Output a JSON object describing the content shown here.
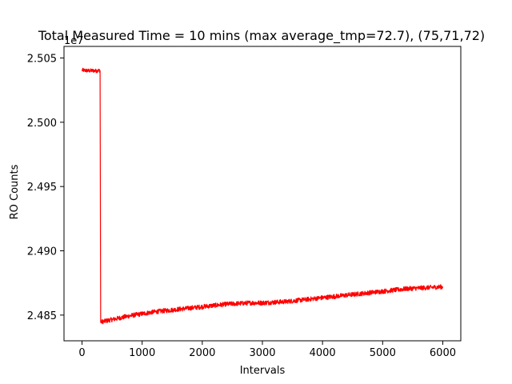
{
  "chart_data": {
    "type": "line",
    "title": "Total Measured Time = 10 mins (max average_tmp=72.7), (75,71,72)",
    "xlabel": "Intervals",
    "ylabel": "RO Counts",
    "offset_label": "1e7",
    "xlim": [
      -300,
      6300
    ],
    "ylim": [
      24830000,
      25059000
    ],
    "x_ticks": [
      0,
      1000,
      2000,
      3000,
      4000,
      5000,
      6000
    ],
    "x_tick_labels": [
      "0",
      "1000",
      "2000",
      "3000",
      "4000",
      "5000",
      "6000"
    ],
    "y_ticks": [
      24850000,
      24900000,
      24950000,
      25000000,
      25050000
    ],
    "y_tick_labels": [
      "2.485",
      "2.490",
      "2.495",
      "2.500",
      "2.505"
    ],
    "grid": false,
    "color": "#ff0000",
    "series": [
      {
        "values_x": [
          0,
          60,
          120,
          180,
          240,
          290,
          300,
          310,
          400,
          600,
          800,
          1000,
          1200,
          1400,
          1600,
          1800,
          2000,
          2200,
          2400,
          2600,
          2800,
          3000,
          3200,
          3400,
          3600,
          3800,
          4000,
          4200,
          4400,
          4600,
          4800,
          5000,
          5200,
          5400,
          5600,
          5800,
          6000
        ],
        "values_y": [
          25040500,
          25040300,
          25040000,
          25040200,
          25040000,
          25040300,
          25040000,
          24844500,
          24845500,
          24847500,
          24849500,
          24851000,
          24852500,
          24853500,
          24854500,
          24855500,
          24856500,
          24857500,
          24858500,
          24859000,
          24859500,
          24859500,
          24860000,
          24860500,
          24861500,
          24862500,
          24863500,
          24864500,
          24865500,
          24866500,
          24867500,
          24868500,
          24869500,
          24870500,
          24871000,
          24871500,
          24872000
        ],
        "noise": [
          1500,
          1500,
          1500,
          1500,
          1500,
          1500,
          1500,
          1800,
          1800,
          1800,
          1800,
          1800,
          1800,
          1800,
          1800,
          1800,
          1800,
          1800,
          1800,
          1800,
          1800,
          1800,
          1800,
          1800,
          1800,
          1800,
          1800,
          1800,
          1800,
          1800,
          1800,
          1800,
          1800,
          1800,
          1800,
          1800,
          1800
        ]
      }
    ]
  }
}
